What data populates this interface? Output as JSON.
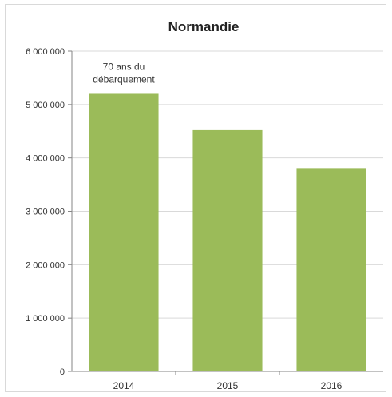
{
  "chart_data": {
    "type": "bar",
    "title": "Normandie",
    "categories": [
      "2014",
      "2015",
      "2016"
    ],
    "values": [
      5200000,
      4520000,
      3810000
    ],
    "ylim": [
      0,
      6000000
    ],
    "yticks": [
      0,
      1000000,
      2000000,
      3000000,
      4000000,
      5000000,
      6000000
    ],
    "ytick_labels": [
      "0",
      "1 000 000",
      "2 000 000",
      "3 000 000",
      "4 000 000",
      "5 000 000",
      "6 000 000"
    ],
    "grid": true,
    "legend": "none",
    "annotations": [
      {
        "category": "2014",
        "lines": [
          "70 ans du",
          "débarquement"
        ]
      }
    ],
    "colors": {
      "bar": "#9bbb59",
      "grid": "#d9d9d9",
      "axis": "#868686"
    }
  }
}
